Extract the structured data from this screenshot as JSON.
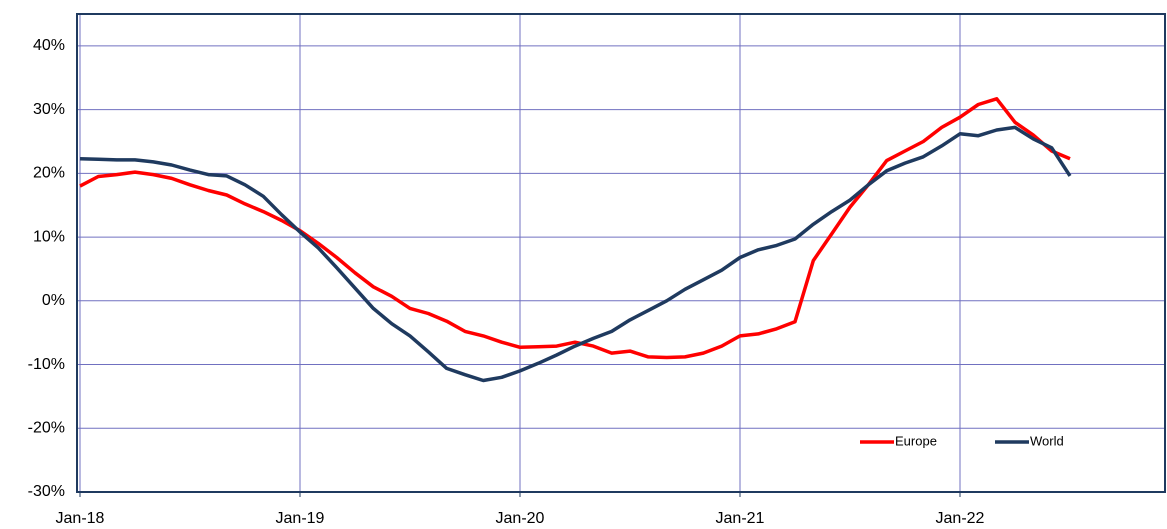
{
  "chart_data": {
    "type": "line",
    "categories": [
      "Jan-18",
      null,
      null,
      null,
      null,
      null,
      null,
      null,
      null,
      null,
      null,
      null,
      "Jan-19",
      null,
      null,
      null,
      null,
      null,
      null,
      null,
      null,
      null,
      null,
      null,
      "Jan-20",
      null,
      null,
      null,
      null,
      null,
      null,
      null,
      null,
      null,
      null,
      null,
      "Jan-21",
      null,
      null,
      null,
      null,
      null,
      null,
      null,
      null,
      null,
      null,
      null,
      "Jan-22",
      null,
      null,
      null,
      null,
      null,
      null
    ],
    "series": [
      {
        "name": "Europe",
        "color": "#ff0000",
        "values": [
          18,
          19.5,
          19.8,
          20.2,
          19.8,
          19.2,
          18.2,
          17.3,
          16.6,
          15.2,
          14.0,
          12.6,
          11,
          9,
          6.8,
          4.4,
          2.2,
          0.7,
          -1.2,
          -2,
          -3.2,
          -4.8,
          -5.5,
          -6.5,
          -7.3,
          -7.2,
          -7.1,
          -6.5,
          -7.1,
          -8.2,
          -7.9,
          -8.8,
          -8.9,
          -8.8,
          -8.2,
          -7.1,
          -5.5,
          -5.2,
          -4.4,
          -3.3,
          6.3,
          10.5,
          14.7,
          18.2,
          22,
          23.5,
          25,
          27.2,
          28.8,
          30.8,
          31.7,
          28,
          26,
          23.5,
          22.3
        ]
      },
      {
        "name": "World",
        "color": "#1f3a5f",
        "values": [
          22.3,
          22.2,
          22.1,
          22.1,
          21.8,
          21.3,
          20.5,
          19.8,
          19.6,
          18.2,
          16.4,
          13.5,
          10.8,
          8.3,
          5.2,
          2.0,
          -1.2,
          -3.6,
          -5.5,
          -8,
          -10.6,
          -11.6,
          -12.5,
          -12.0,
          -11.0,
          -9.8,
          -8.5,
          -7.1,
          -5.9,
          -4.8,
          -3.0,
          -1.5,
          0,
          1.8,
          3.3,
          4.8,
          6.8,
          8.0,
          8.7,
          9.7,
          12,
          14,
          15.8,
          18.2,
          20.4,
          21.6,
          22.6,
          24.3,
          26.2,
          25.9,
          26.8,
          27.2,
          25.4,
          24.0,
          19.6
        ]
      }
    ],
    "ylim": [
      -30,
      45
    ],
    "yticks": [
      {
        "value": -30,
        "label": "-30%"
      },
      {
        "value": -20,
        "label": "-20%"
      },
      {
        "value": -10,
        "label": "-10%"
      },
      {
        "value": 0,
        "label": "0%"
      },
      {
        "value": 10,
        "label": "10%"
      },
      {
        "value": 20,
        "label": "20%"
      },
      {
        "value": 30,
        "label": "30%"
      },
      {
        "value": 40,
        "label": "40%"
      }
    ],
    "grid": true,
    "legend": "lower right"
  }
}
